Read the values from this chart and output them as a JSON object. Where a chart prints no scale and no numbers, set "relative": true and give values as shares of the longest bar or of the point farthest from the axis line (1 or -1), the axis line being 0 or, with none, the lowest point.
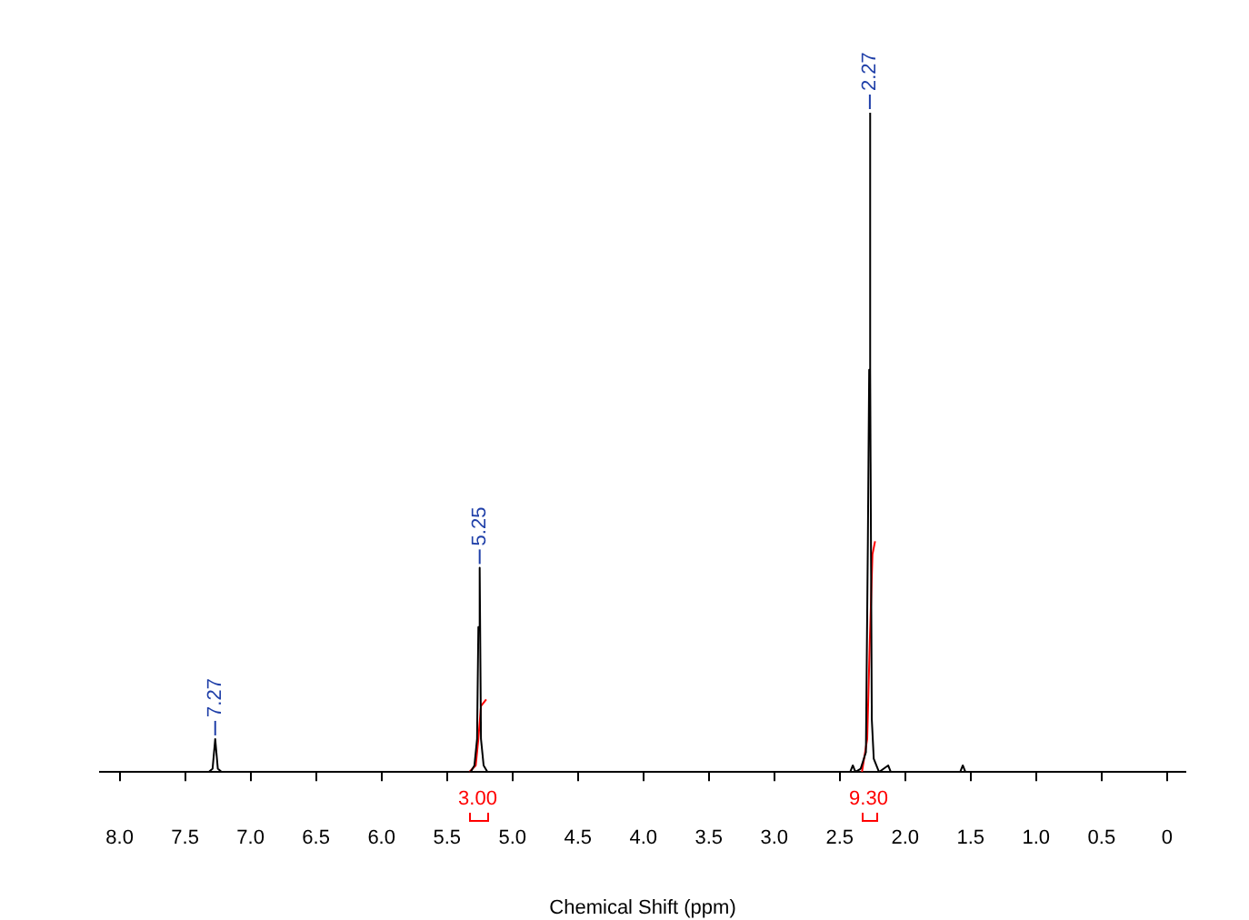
{
  "chart_data": {
    "type": "line",
    "xlabel": "Chemical Shift (ppm)",
    "relative": true,
    "marker": "none",
    "line_style": "solid",
    "xlim": [
      8.15,
      -0.14
    ],
    "xticks": [
      {
        "value": 8,
        "label": "8.0"
      },
      {
        "value": 7.5,
        "label": "7.5"
      },
      {
        "value": 7,
        "label": "7.0"
      },
      {
        "value": 6.5,
        "label": "6.5"
      },
      {
        "value": 6,
        "label": "6.0"
      },
      {
        "value": 5.5,
        "label": "5.5"
      },
      {
        "value": 5,
        "label": "5.0"
      },
      {
        "value": 4.5,
        "label": "4.5"
      },
      {
        "value": 4,
        "label": "4.0"
      },
      {
        "value": 3.5,
        "label": "3.5"
      },
      {
        "value": 3,
        "label": "3.0"
      },
      {
        "value": 2.5,
        "label": "2.5"
      },
      {
        "value": 2,
        "label": "2.0"
      },
      {
        "value": 1.5,
        "label": "1.5"
      },
      {
        "value": 1,
        "label": "1.0"
      },
      {
        "value": 0.5,
        "label": "0.5"
      },
      0
    ],
    "series": [
      {
        "color": "#000000",
        "x": [
          8.15,
          7.32,
          7.29,
          7.27,
          7.25,
          7.22,
          5.32,
          5.29,
          5.27,
          5.26,
          5.25,
          5.24,
          5.22,
          5.19,
          2.42,
          2.4,
          2.38,
          2.34,
          2.3,
          2.285,
          2.275,
          2.27,
          2.265,
          2.255,
          2.24,
          2.2,
          2.13,
          2.11,
          1.58,
          1.56,
          1.54,
          -0.14
        ],
        "values": [
          0,
          0,
          0.005,
          0.05,
          0.005,
          0,
          0,
          0.01,
          0.05,
          0.22,
          0.31,
          0.05,
          0.01,
          0,
          0,
          0.01,
          0,
          0.005,
          0.03,
          0.35,
          0.61,
          1,
          0.61,
          0.08,
          0.02,
          0,
          0.01,
          0,
          0,
          0.01,
          0,
          0
        ]
      },
      {
        "color": "#ff0000",
        "x": [
          5.33,
          5.28,
          5.26,
          5.24,
          5.2
        ],
        "values": [
          0,
          0.01,
          0.05,
          0.1,
          0.11
        ]
      },
      {
        "color": "#ff0000",
        "x": [
          2.33,
          2.29,
          2.27,
          2.25,
          2.23
        ],
        "values": [
          0,
          0.05,
          0.2,
          0.33,
          0.35
        ]
      }
    ],
    "annotations": [
      {
        "text": "7.27",
        "x": 7.27,
        "y": 0.05
      },
      {
        "text": "5.25",
        "x": 5.25,
        "y": 0.31
      },
      {
        "text": "2.27",
        "x": 2.27,
        "y": 1
      },
      "3.00",
      "9.30"
    ]
  }
}
